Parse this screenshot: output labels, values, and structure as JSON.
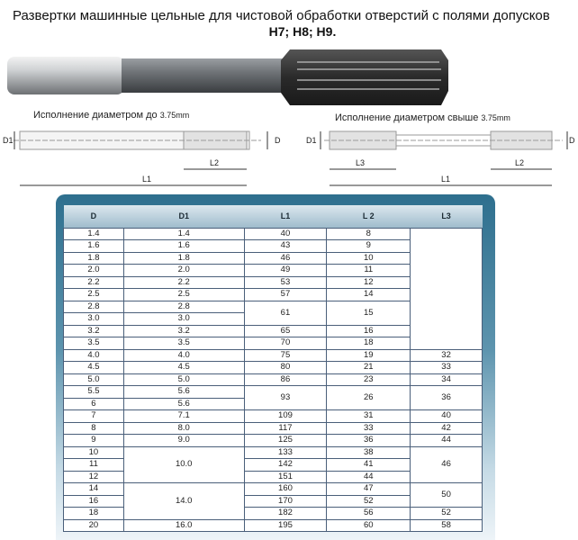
{
  "title": {
    "line1": "Развертки машинные цельные для чистовой обработки отверстий с полями допусков",
    "line2": "H7; H8; H9."
  },
  "diagrams": {
    "left": {
      "caption": "Исполнение диаметром до",
      "size": "3.75mm",
      "labels": {
        "d1": "D1",
        "d": "D",
        "l2": "L2",
        "l1": "L1"
      }
    },
    "right": {
      "caption": "Исполнение диаметром свыше",
      "size": "3.75mm",
      "labels": {
        "d1": "D1",
        "d": "D",
        "l3": "L3",
        "l2": "L2",
        "l1": "L1"
      }
    }
  },
  "table": {
    "headers": [
      "D",
      "D1",
      "L1",
      "L 2",
      "L3"
    ],
    "rows": [
      [
        {
          "v": "1.4"
        },
        {
          "v": "1.4"
        },
        {
          "v": "40"
        },
        {
          "v": "8"
        },
        {
          "v": "",
          "rowspan": 10
        }
      ],
      [
        {
          "v": "1.6"
        },
        {
          "v": "1.6"
        },
        {
          "v": "43"
        },
        {
          "v": "9"
        }
      ],
      [
        {
          "v": "1.8"
        },
        {
          "v": "1.8"
        },
        {
          "v": "46"
        },
        {
          "v": "10"
        }
      ],
      [
        {
          "v": "2.0"
        },
        {
          "v": "2.0"
        },
        {
          "v": "49"
        },
        {
          "v": "11"
        }
      ],
      [
        {
          "v": "2.2"
        },
        {
          "v": "2.2"
        },
        {
          "v": "53"
        },
        {
          "v": "12"
        }
      ],
      [
        {
          "v": "2.5"
        },
        {
          "v": "2.5"
        },
        {
          "v": "57"
        },
        {
          "v": "14"
        }
      ],
      [
        {
          "v": "2.8"
        },
        {
          "v": "2.8"
        },
        {
          "v": "61",
          "rowspan": 2
        },
        {
          "v": "15",
          "rowspan": 2
        }
      ],
      [
        {
          "v": "3.0"
        },
        {
          "v": "3.0"
        }
      ],
      [
        {
          "v": "3.2"
        },
        {
          "v": "3.2"
        },
        {
          "v": "65"
        },
        {
          "v": "16"
        }
      ],
      [
        {
          "v": "3.5"
        },
        {
          "v": "3.5"
        },
        {
          "v": "70"
        },
        {
          "v": "18"
        }
      ],
      [
        {
          "v": "4.0"
        },
        {
          "v": "4.0"
        },
        {
          "v": "75"
        },
        {
          "v": "19"
        },
        {
          "v": "32"
        }
      ],
      [
        {
          "v": "4.5"
        },
        {
          "v": "4.5"
        },
        {
          "v": "80"
        },
        {
          "v": "21"
        },
        {
          "v": "33"
        }
      ],
      [
        {
          "v": "5.0"
        },
        {
          "v": "5.0"
        },
        {
          "v": "86"
        },
        {
          "v": "23"
        },
        {
          "v": "34"
        }
      ],
      [
        {
          "v": "5.5"
        },
        {
          "v": "5.6"
        },
        {
          "v": "93",
          "rowspan": 2
        },
        {
          "v": "26",
          "rowspan": 2
        },
        {
          "v": "36",
          "rowspan": 2
        }
      ],
      [
        {
          "v": "6"
        },
        {
          "v": "5.6"
        }
      ],
      [
        {
          "v": "7"
        },
        {
          "v": "7.1"
        },
        {
          "v": "109"
        },
        {
          "v": "31"
        },
        {
          "v": "40"
        }
      ],
      [
        {
          "v": "8"
        },
        {
          "v": "8.0"
        },
        {
          "v": "117"
        },
        {
          "v": "33"
        },
        {
          "v": "42"
        }
      ],
      [
        {
          "v": "9"
        },
        {
          "v": "9.0"
        },
        {
          "v": "125"
        },
        {
          "v": "36"
        },
        {
          "v": "44"
        }
      ],
      [
        {
          "v": "10"
        },
        {
          "v": "10.0",
          "rowspan": 3
        },
        {
          "v": "133"
        },
        {
          "v": "38"
        },
        {
          "v": "46",
          "rowspan": 3
        }
      ],
      [
        {
          "v": "11"
        },
        {
          "v": "142"
        },
        {
          "v": "41"
        }
      ],
      [
        {
          "v": "12"
        },
        {
          "v": "151"
        },
        {
          "v": "44"
        }
      ],
      [
        {
          "v": "14"
        },
        {
          "v": "14.0",
          "rowspan": 3
        },
        {
          "v": "160"
        },
        {
          "v": "47"
        },
        {
          "v": "50",
          "rowspan": 2
        }
      ],
      [
        {
          "v": "16"
        },
        {
          "v": "170"
        },
        {
          "v": "52"
        }
      ],
      [
        {
          "v": "18"
        },
        {
          "v": "182"
        },
        {
          "v": "56"
        },
        {
          "v": "52"
        }
      ],
      [
        {
          "v": "20"
        },
        {
          "v": "16.0"
        },
        {
          "v": "195"
        },
        {
          "v": "60"
        },
        {
          "v": "58"
        }
      ]
    ]
  }
}
